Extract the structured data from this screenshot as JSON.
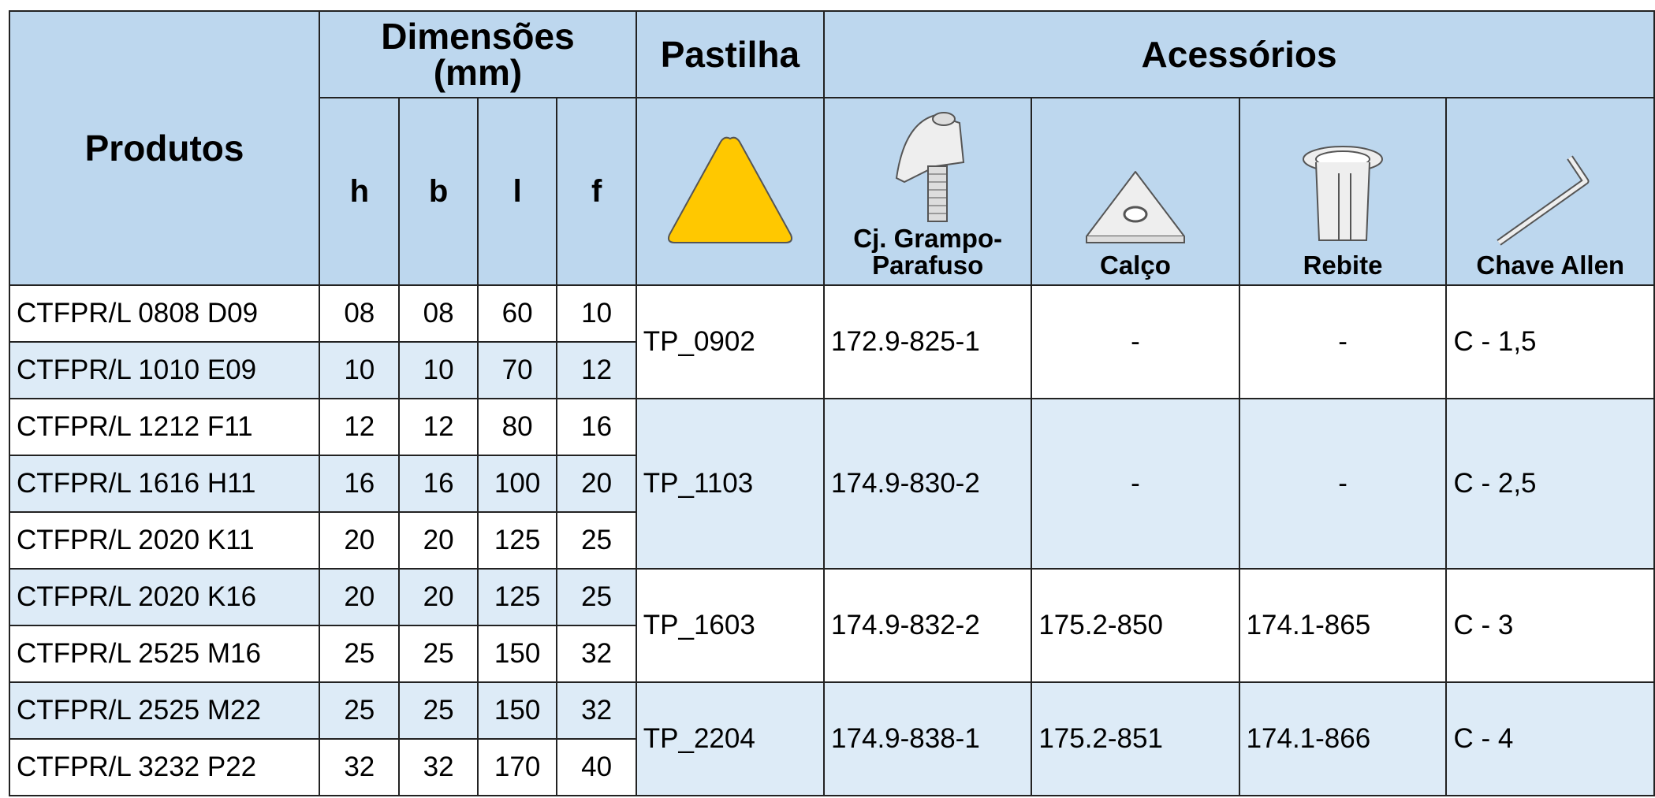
{
  "header": {
    "products": "Produtos",
    "dimensions": [
      "Dimensões",
      "(mm)"
    ],
    "insert": "Pastilha",
    "accessories": "Acessórios",
    "dims": [
      "h",
      "b",
      "l",
      "f"
    ],
    "clamp": "Cj. Grampo-Parafuso",
    "shim": "Calço",
    "rivet": "Rebite",
    "key": "Chave Allen"
  },
  "groups": [
    {
      "insert": "TP_0902",
      "clamp": "172.9-825-1",
      "shim": "-",
      "rivet": "-",
      "key": "C - 1,5",
      "rows": [
        [
          "CTFPR/L 0808 D09",
          "08",
          "08",
          "60",
          "10"
        ],
        [
          "CTFPR/L 1010 E09",
          "10",
          "10",
          "70",
          "12"
        ]
      ]
    },
    {
      "insert": "TP_1103",
      "clamp": "174.9-830-2",
      "shim": "-",
      "rivet": "-",
      "key": "C - 2,5",
      "rows": [
        [
          "CTFPR/L 1212 F11",
          "12",
          "12",
          "80",
          "16"
        ],
        [
          "CTFPR/L 1616 H11",
          "16",
          "16",
          "100",
          "20"
        ],
        [
          "CTFPR/L 2020 K11",
          "20",
          "20",
          "125",
          "25"
        ]
      ]
    },
    {
      "insert": "TP_1603",
      "clamp": "174.9-832-2",
      "shim": "175.2-850",
      "rivet": "174.1-865",
      "key": "C - 3",
      "rows": [
        [
          "CTFPR/L 2020 K16",
          "20",
          "20",
          "125",
          "25"
        ],
        [
          "CTFPR/L 2525 M16",
          "25",
          "25",
          "150",
          "32"
        ]
      ]
    },
    {
      "insert": "TP_2204",
      "clamp": "174.9-838-1",
      "shim": "175.2-851",
      "rivet": "174.1-866",
      "key": "C - 4",
      "rows": [
        [
          "CTFPR/L 2525 M22",
          "25",
          "25",
          "150",
          "32"
        ],
        [
          "CTFPR/L 3232 P22",
          "32",
          "32",
          "170",
          "40"
        ]
      ]
    }
  ]
}
